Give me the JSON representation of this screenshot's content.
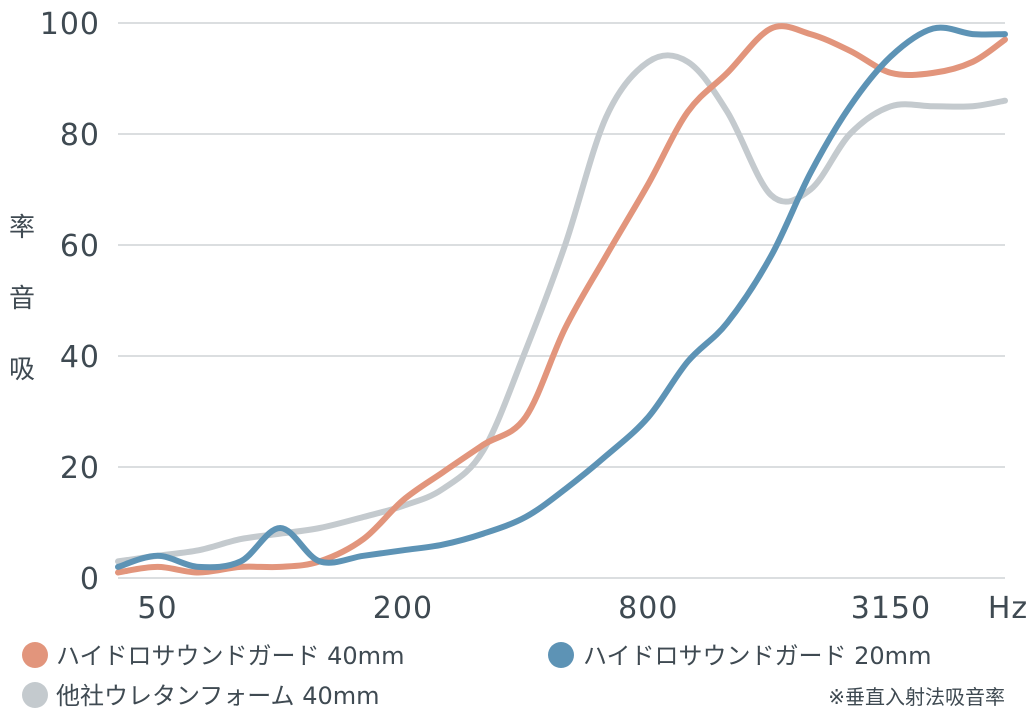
{
  "chart_data": {
    "type": "line",
    "title": "",
    "xlabel": "",
    "ylabel": "吸音率",
    "x_unit": "Hz",
    "ylim": [
      0,
      100
    ],
    "yticks": [
      0,
      20,
      40,
      60,
      80,
      100
    ],
    "xticks": [
      {
        "label": "50",
        "value": 50
      },
      {
        "label": "200",
        "value": 200
      },
      {
        "label": "800",
        "value": 800
      },
      {
        "label": "3150",
        "value": 3150
      }
    ],
    "x_scale": "log",
    "grid": "horizontal",
    "legend_position": "bottom",
    "note": "※垂直入射法吸音率",
    "series": [
      {
        "name": "ハイドロサウンドガード 40mm",
        "color": "#e2957c",
        "x": [
          40,
          50,
          63,
          80,
          100,
          125,
          160,
          200,
          250,
          315,
          400,
          500,
          630,
          800,
          1000,
          1250,
          1600,
          2000,
          2500,
          3150,
          4000,
          5000,
          6000
        ],
        "y": [
          1,
          2,
          1,
          2,
          2,
          3,
          7,
          14,
          19,
          24,
          29,
          45,
          58,
          71,
          84,
          91,
          99,
          98,
          95,
          91,
          91,
          93,
          97
        ]
      },
      {
        "name": "ハイドロサウンドガード 20mm",
        "color": "#5d93b5",
        "x": [
          40,
          50,
          63,
          80,
          100,
          125,
          160,
          200,
          250,
          315,
          400,
          500,
          630,
          800,
          1000,
          1250,
          1600,
          2000,
          2500,
          3150,
          4000,
          5000,
          6000
        ],
        "y": [
          2,
          4,
          2,
          3,
          9,
          3,
          4,
          5,
          6,
          8,
          11,
          16,
          22,
          29,
          39,
          46,
          58,
          73,
          85,
          94,
          99,
          98,
          98
        ]
      },
      {
        "name": "他社ウレタンフォーム 40mm",
        "color": "#c4cace",
        "x": [
          40,
          50,
          63,
          80,
          100,
          125,
          160,
          200,
          250,
          315,
          400,
          500,
          630,
          800,
          1000,
          1250,
          1600,
          2000,
          2500,
          3150,
          4000,
          5000,
          6000
        ],
        "y": [
          3,
          4,
          5,
          7,
          8,
          9,
          11,
          13,
          16,
          23,
          41,
          60,
          83,
          93,
          93,
          84,
          69,
          70,
          80,
          85,
          85,
          85,
          86
        ]
      }
    ],
    "legend_order": [
      0,
      1,
      2
    ]
  }
}
